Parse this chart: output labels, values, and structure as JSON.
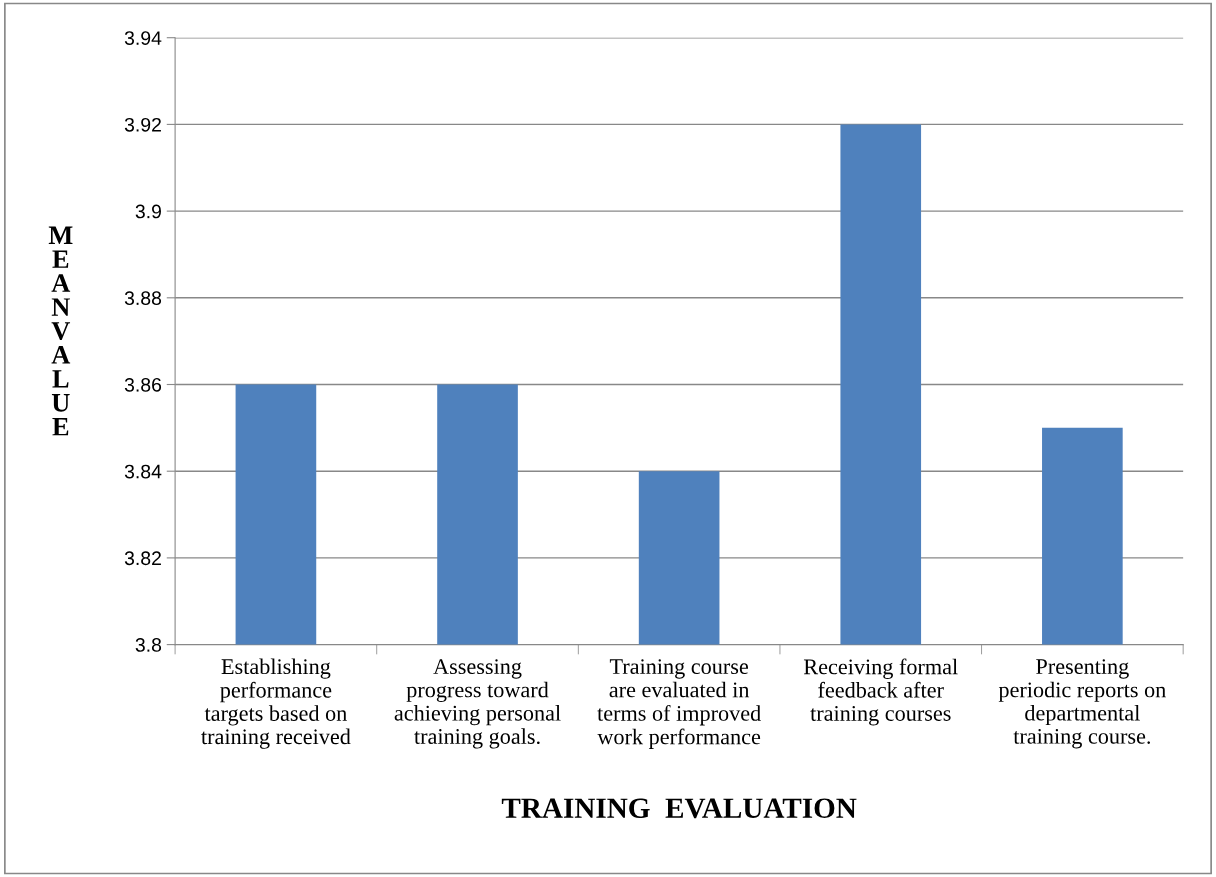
{
  "chart_data": {
    "type": "bar",
    "categories": [
      "Establishing\nperformance\ntargets based on\ntraining received",
      "Assessing\nprogress toward\nachieving personal\ntraining goals.",
      "Training course\nare evaluated in\nterms of improved\nwork performance",
      "Receiving formal\nfeedback after\ntraining courses",
      "Presenting\nperiodic reports on\ndepartmental\ntraining course."
    ],
    "values": [
      3.86,
      3.86,
      3.84,
      3.92,
      3.85
    ],
    "color": "#4f81bd",
    "xlabel": "TRAINING  EVALUATION",
    "ylabel": "MEAN VALUE",
    "ylim": [
      3.8,
      3.94
    ],
    "yticks": [
      3.8,
      3.82,
      3.84,
      3.86,
      3.88,
      3.9,
      3.92,
      3.94
    ],
    "grid": "y",
    "legend": false
  }
}
